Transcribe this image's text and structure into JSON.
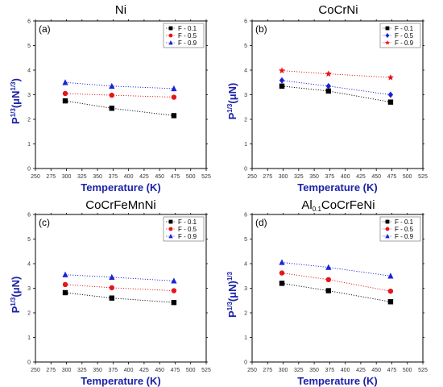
{
  "chart_data": [
    {
      "type": "scatter",
      "title": "Ni",
      "title_sub": "",
      "title_rest": "",
      "panel_label": "(a)",
      "xlabel": "Temperature (K)",
      "ylabel_parts": [
        "P",
        "1/3",
        "(μN",
        "1/3",
        ")"
      ],
      "xlim": [
        250,
        525
      ],
      "ylim": [
        0,
        6
      ],
      "x_ticks": [
        250,
        275,
        300,
        325,
        350,
        375,
        400,
        425,
        450,
        475,
        500,
        525
      ],
      "y_ticks": [
        0,
        1,
        2,
        3,
        4,
        5,
        6
      ],
      "legend_position": "top-right",
      "series": [
        {
          "name": "F - 0.1",
          "marker": "square",
          "color": "#000000",
          "x": [
            298,
            373,
            473
          ],
          "y": [
            2.75,
            2.45,
            2.15
          ]
        },
        {
          "name": "F - 0.5",
          "marker": "circle",
          "color": "#e8141b",
          "x": [
            298,
            373,
            473
          ],
          "y": [
            3.05,
            2.98,
            2.9
          ]
        },
        {
          "name": "F - 0.9",
          "marker": "triangle",
          "color": "#1a22d8",
          "x": [
            298,
            373,
            473
          ],
          "y": [
            3.5,
            3.35,
            3.25
          ]
        }
      ]
    },
    {
      "type": "scatter",
      "title": "CoCrNi",
      "title_sub": "",
      "title_rest": "",
      "panel_label": "(b)",
      "xlabel": "Temperature (K)",
      "ylabel_parts": [
        "P",
        "1/3",
        "(μN)",
        "",
        ""
      ],
      "xlim": [
        250,
        525
      ],
      "ylim": [
        0,
        6
      ],
      "x_ticks": [
        250,
        275,
        300,
        325,
        350,
        375,
        400,
        425,
        450,
        475,
        500,
        525
      ],
      "y_ticks": [
        0,
        1,
        2,
        3,
        4,
        5,
        6
      ],
      "legend_position": "top-right",
      "series": [
        {
          "name": "F - 0.1",
          "marker": "square",
          "color": "#000000",
          "x": [
            298,
            373,
            473
          ],
          "y": [
            3.35,
            3.15,
            2.7
          ]
        },
        {
          "name": "F - 0.5",
          "marker": "diamond",
          "color": "#1a22d8",
          "x": [
            298,
            373,
            473
          ],
          "y": [
            3.58,
            3.35,
            3.0
          ]
        },
        {
          "name": "F - 0.9",
          "marker": "star",
          "color": "#e8141b",
          "x": [
            298,
            373,
            473
          ],
          "y": [
            3.98,
            3.85,
            3.7
          ]
        }
      ]
    },
    {
      "type": "scatter",
      "title": "CoCrFeMnNi",
      "title_sub": "",
      "title_rest": "",
      "panel_label": "(c)",
      "xlabel": "Temperature (K)",
      "ylabel_parts": [
        "P",
        "1/3",
        "(μN)",
        "",
        ""
      ],
      "xlim": [
        250,
        525
      ],
      "ylim": [
        0,
        6
      ],
      "x_ticks": [
        250,
        275,
        300,
        325,
        350,
        375,
        400,
        425,
        450,
        475,
        500,
        525
      ],
      "y_ticks": [
        0,
        1,
        2,
        3,
        4,
        5,
        6
      ],
      "legend_position": "top-right",
      "series": [
        {
          "name": "F - 0.1",
          "marker": "square",
          "color": "#000000",
          "x": [
            298,
            373,
            473
          ],
          "y": [
            2.82,
            2.6,
            2.42
          ]
        },
        {
          "name": "F - 0.5",
          "marker": "circle",
          "color": "#e8141b",
          "x": [
            298,
            373,
            473
          ],
          "y": [
            3.15,
            3.02,
            2.9
          ]
        },
        {
          "name": "F - 0.9",
          "marker": "triangle",
          "color": "#1a22d8",
          "x": [
            298,
            373,
            473
          ],
          "y": [
            3.55,
            3.45,
            3.3
          ]
        }
      ]
    },
    {
      "type": "scatter",
      "title": "Al",
      "title_sub": "0.1",
      "title_rest": "CoCrFeNi",
      "panel_label": "(d)",
      "xlabel": "Temperature (K)",
      "ylabel_parts": [
        "P",
        "1/3",
        "(μN)",
        "1/3",
        ""
      ],
      "xlim": [
        250,
        525
      ],
      "ylim": [
        0,
        6
      ],
      "x_ticks": [
        250,
        275,
        300,
        325,
        350,
        375,
        400,
        425,
        450,
        475,
        500,
        525
      ],
      "y_ticks": [
        0,
        1,
        2,
        3,
        4,
        5,
        6
      ],
      "legend_position": "top-right",
      "series": [
        {
          "name": "F - 0.1",
          "marker": "square",
          "color": "#000000",
          "x": [
            298,
            373,
            473
          ],
          "y": [
            3.2,
            2.9,
            2.45
          ]
        },
        {
          "name": "F - 0.5",
          "marker": "circle",
          "color": "#e8141b",
          "x": [
            298,
            373,
            473
          ],
          "y": [
            3.62,
            3.35,
            2.88
          ]
        },
        {
          "name": "F - 0.9",
          "marker": "triangle",
          "color": "#1a22d8",
          "x": [
            298,
            373,
            473
          ],
          "y": [
            4.05,
            3.85,
            3.5
          ]
        }
      ]
    }
  ]
}
